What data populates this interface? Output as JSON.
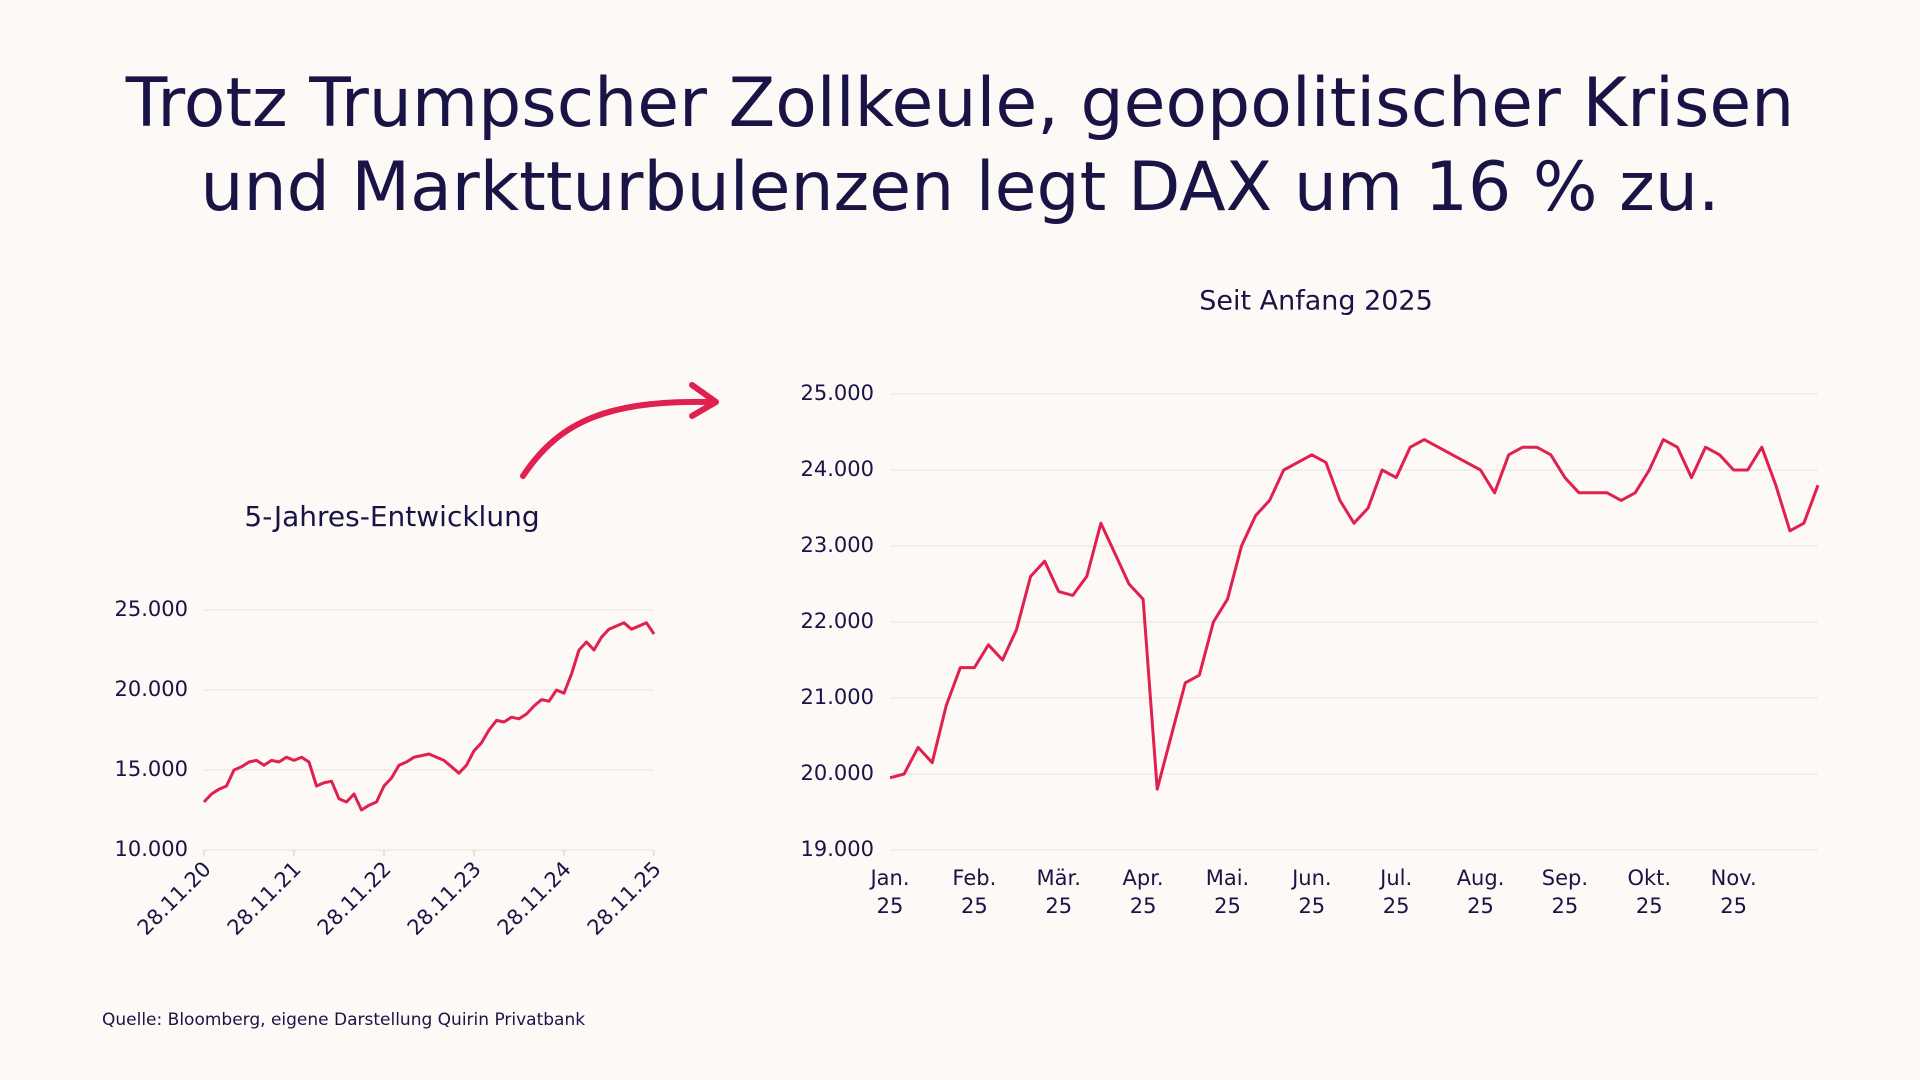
{
  "title": "Trotz Trumpscher Zollkeule, geopolitischer Krisen\nund Marktturbulenzen legt DAX um 16 % zu.",
  "source": "Quelle: Bloomberg, eigene Darstellung Quirin Privatbank",
  "chart_data": [
    {
      "type": "line",
      "title": "5-Jahres-Entwicklung",
      "color": "#e0204e",
      "grid": true,
      "categories": [
        "28.11.20",
        null,
        null,
        null,
        null,
        null,
        null,
        null,
        null,
        null,
        null,
        null,
        "28.11.21",
        null,
        null,
        null,
        null,
        null,
        null,
        null,
        null,
        null,
        null,
        null,
        "28.11.22",
        null,
        null,
        null,
        null,
        null,
        null,
        null,
        null,
        null,
        null,
        null,
        "28.11.23",
        null,
        null,
        null,
        null,
        null,
        null,
        null,
        null,
        null,
        null,
        null,
        "28.11.24",
        null,
        null,
        null,
        null,
        null,
        null,
        null,
        null,
        null,
        null,
        null,
        "28.11.25"
      ],
      "values": [
        13000,
        13500,
        13800,
        14000,
        15000,
        15200,
        15500,
        15600,
        15300,
        15600,
        15500,
        15800,
        15600,
        15800,
        15500,
        14000,
        14200,
        14300,
        13200,
        13000,
        13500,
        12500,
        12800,
        13000,
        14000,
        14500,
        15300,
        15500,
        15800,
        15900,
        16000,
        15800,
        15600,
        15200,
        14800,
        15300,
        16200,
        16700,
        17500,
        18100,
        18000,
        18300,
        18200,
        18500,
        19000,
        19400,
        19300,
        20000,
        19800,
        21000,
        22500,
        23000,
        22500,
        23300,
        23800,
        24000,
        24200,
        23800,
        24000,
        24200,
        23500
      ],
      "ylim": [
        10000,
        25000
      ],
      "yticks": [
        {
          "value": 10000,
          "label": "10.000"
        },
        {
          "value": 15000,
          "label": "15.000"
        },
        {
          "value": 20000,
          "label": "20.000"
        },
        {
          "value": 25000,
          "label": "25.000"
        }
      ]
    },
    {
      "type": "line",
      "title": "Seit Anfang 2025",
      "color": "#e0204e",
      "grid": true,
      "categories": [
        "Jan.\n25",
        null,
        null,
        null,
        null,
        null,
        "Feb.\n25",
        null,
        null,
        null,
        null,
        null,
        "Mär.\n25",
        null,
        null,
        null,
        null,
        null,
        "Apr.\n25",
        null,
        null,
        null,
        null,
        null,
        "Mai.\n25",
        null,
        null,
        null,
        null,
        null,
        "Jun.\n25",
        null,
        null,
        null,
        null,
        null,
        "Jul.\n25",
        null,
        null,
        null,
        null,
        null,
        "Aug.\n25",
        null,
        null,
        null,
        null,
        null,
        "Sep.\n25",
        null,
        null,
        null,
        null,
        null,
        "Okt.\n25",
        null,
        null,
        null,
        null,
        null,
        "Nov.\n25",
        null,
        null,
        null,
        null,
        null,
        null
      ],
      "values": [
        19950,
        20000,
        20350,
        20150,
        20900,
        21400,
        21400,
        21700,
        21500,
        21900,
        22600,
        22800,
        22400,
        22350,
        22600,
        23300,
        22900,
        22500,
        22300,
        19800,
        20500,
        21200,
        21300,
        22000,
        22300,
        23000,
        23400,
        23600,
        24000,
        24100,
        24200,
        24100,
        23600,
        23300,
        23500,
        24000,
        23900,
        24300,
        24400,
        24300,
        24200,
        24100,
        24000,
        23700,
        24200,
        24300,
        24300,
        24200,
        23900,
        23700,
        23700,
        23700,
        23600,
        23700,
        24000,
        24400,
        24300,
        23900,
        24300,
        24200,
        24000,
        24000,
        24300,
        23800,
        23200,
        23300,
        23800
      ],
      "ylim": [
        19000,
        25000
      ],
      "yticks": [
        {
          "value": 19000,
          "label": "19.000"
        },
        {
          "value": 20000,
          "label": "20.000"
        },
        {
          "value": 21000,
          "label": "21.000"
        },
        {
          "value": 22000,
          "label": "22.000"
        },
        {
          "value": 23000,
          "label": "23.000"
        },
        {
          "value": 24000,
          "label": "24.000"
        },
        {
          "value": 25000,
          "label": "25.000"
        }
      ]
    }
  ]
}
